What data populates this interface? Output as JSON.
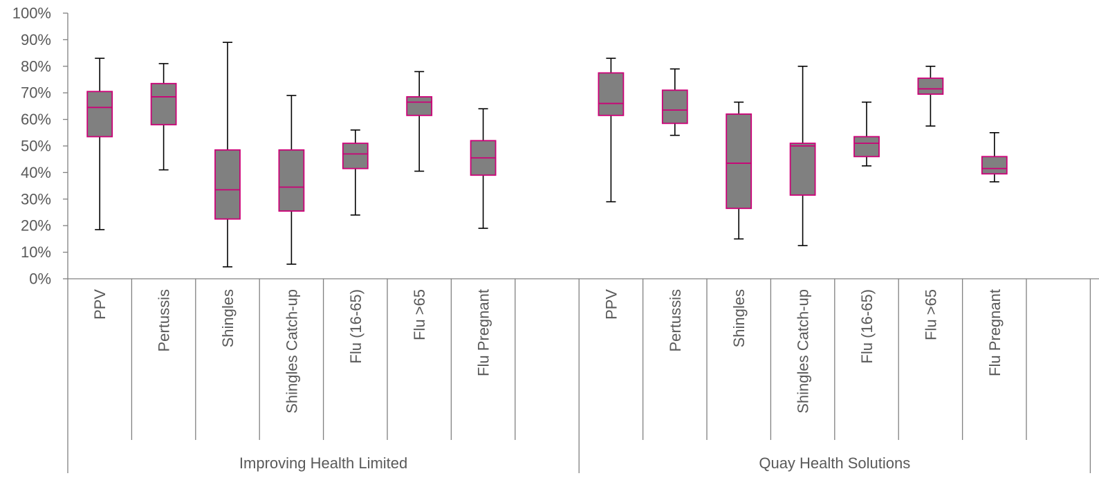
{
  "chart_data": {
    "type": "boxplot",
    "title": "",
    "xlabel": "",
    "ylabel": "",
    "ylim": [
      0,
      100
    ],
    "y_ticks": [
      "0%",
      "10%",
      "20%",
      "30%",
      "40%",
      "50%",
      "60%",
      "70%",
      "80%",
      "90%",
      "100%"
    ],
    "grid": false,
    "colors": {
      "box_fill": "#808080",
      "box_edge": "#cc0077",
      "whisker": "#000000",
      "axis": "#808080",
      "text": "#595959"
    },
    "groups": [
      {
        "name": "Improving Health Limited",
        "categories": [
          "PPV",
          "Pertussis",
          "Shingles",
          "Shingles Catch-up",
          "Flu (16-65)",
          "Flu >65",
          "Flu Pregnant"
        ],
        "boxes": [
          {
            "min": 18.5,
            "q1": 53.5,
            "median": 64.5,
            "q3": 70.5,
            "max": 83
          },
          {
            "min": 41,
            "q1": 58,
            "median": 68.5,
            "q3": 73.5,
            "max": 81
          },
          {
            "min": 4.5,
            "q1": 22.5,
            "median": 33.5,
            "q3": 48.5,
            "max": 89
          },
          {
            "min": 5.5,
            "q1": 25.5,
            "median": 34.5,
            "q3": 48.5,
            "max": 69
          },
          {
            "min": 24,
            "q1": 41.5,
            "median": 47,
            "q3": 51,
            "max": 56
          },
          {
            "min": 40.5,
            "q1": 61.5,
            "median": 66.5,
            "q3": 68.5,
            "max": 78
          },
          {
            "min": 19,
            "q1": 39,
            "median": 45.5,
            "q3": 52,
            "max": 64
          }
        ]
      },
      {
        "name": "Quay Health Solutions",
        "categories": [
          "PPV",
          "Pertussis",
          "Shingles",
          "Shingles Catch-up",
          "Flu (16-65)",
          "Flu >65",
          "Flu Pregnant"
        ],
        "boxes": [
          {
            "min": 29,
            "q1": 61.5,
            "median": 66,
            "q3": 77.5,
            "max": 83
          },
          {
            "min": 54,
            "q1": 58.5,
            "median": 63.5,
            "q3": 71,
            "max": 79
          },
          {
            "min": 15,
            "q1": 26.5,
            "median": 43.5,
            "q3": 62,
            "max": 66.5
          },
          {
            "min": 12.5,
            "q1": 31.5,
            "median": 50,
            "q3": 51,
            "max": 80
          },
          {
            "min": 42.5,
            "q1": 46,
            "median": 51,
            "q3": 53.5,
            "max": 66.5
          },
          {
            "min": 57.5,
            "q1": 69.5,
            "median": 71.5,
            "q3": 75.5,
            "max": 80
          },
          {
            "min": 36.5,
            "q1": 39.5,
            "median": 41.5,
            "q3": 46,
            "max": 55
          }
        ]
      }
    ]
  }
}
